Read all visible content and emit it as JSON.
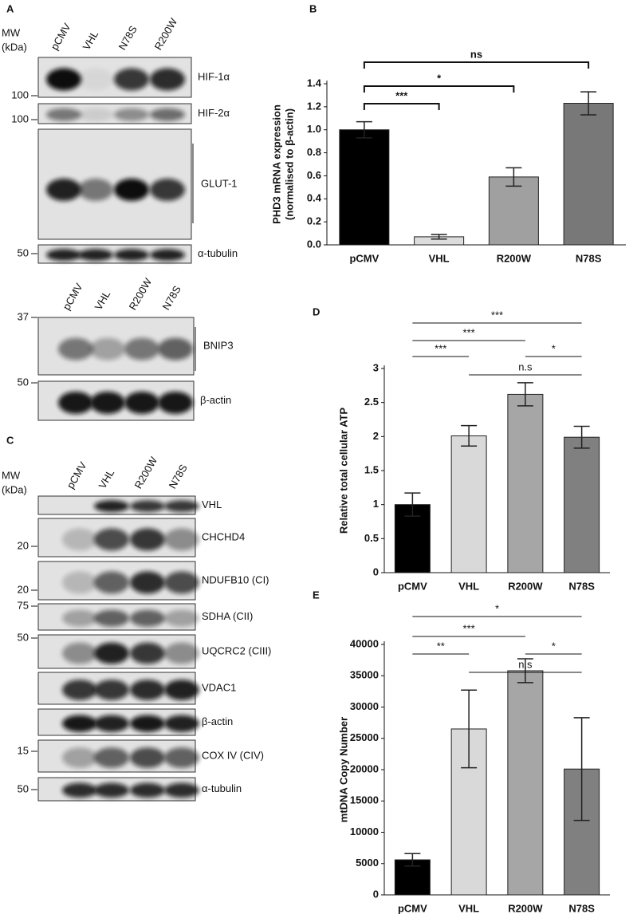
{
  "blots": [
    {
      "panel": "A",
      "mw_label": [
        "MW",
        "(kDa)"
      ],
      "lanes": [
        "pCMV",
        "VHL",
        "N78S",
        "R200W"
      ],
      "rows": [
        {
          "label": "HIF-1α",
          "markers": [
            "100"
          ]
        },
        {
          "label": "HIF-2α",
          "markers": [
            "100"
          ]
        },
        {
          "label": "GLUT-1",
          "markers": []
        },
        {
          "label": "α-tubulin",
          "markers": [
            "50"
          ]
        }
      ]
    },
    {
      "lanes": [
        "pCMV",
        "VHL",
        "R200W",
        "N78S"
      ],
      "rows": [
        {
          "label": "BNIP3",
          "markers": [
            "37"
          ]
        },
        {
          "label": "β-actin",
          "markers": [
            "50"
          ]
        }
      ]
    },
    {
      "panel": "C",
      "mw_label": [
        "MW",
        "(kDa)"
      ],
      "lanes": [
        "pCMV",
        "VHL",
        "R200W",
        "N78S"
      ],
      "rows": [
        {
          "label": "VHL",
          "markers": []
        },
        {
          "label": "CHCHD4",
          "markers": [
            "20"
          ]
        },
        {
          "label": "NDUFB10 (CI)",
          "markers": [
            "20"
          ]
        },
        {
          "label": "SDHA (CII)",
          "markers": [
            "75"
          ]
        },
        {
          "label": "UQCRC2  (CIII)",
          "markers": [
            "50"
          ]
        },
        {
          "label": "VDAC1",
          "markers": []
        },
        {
          "label": "β-actin",
          "markers": []
        },
        {
          "label": "COX IV (CIV)",
          "markers": [
            "15"
          ]
        },
        {
          "label": "α-tubulin",
          "markers": [
            "50"
          ]
        }
      ]
    }
  ],
  "chart_data": [
    {
      "type": "bar",
      "panel": "B",
      "y_label": [
        "PHD3 mRNA expression",
        "(normalised to β-actin)"
      ],
      "categories": [
        "pCMV",
        "VHL",
        "R200W",
        "N78S"
      ],
      "values": [
        1.0,
        0.07,
        0.59,
        1.23
      ],
      "errors": [
        0.07,
        0.02,
        0.08,
        0.1
      ],
      "colors": [
        "#000000",
        "#dcdcdc",
        "#a0a0a0",
        "#787878"
      ],
      "ylim": [
        0,
        1.4
      ],
      "yticks": [
        {
          "value": 0,
          "label": "0.0"
        },
        0.2,
        0.4,
        0.6,
        0.8,
        {
          "value": 1,
          "label": "1.0"
        },
        1.2,
        1.4
      ],
      "significance": [
        {
          "between": [
            "pCMV",
            "N78S"
          ],
          "label": "ns"
        },
        {
          "between": [
            "pCMV",
            "R200W"
          ],
          "label": "*"
        },
        {
          "between": [
            "pCMV",
            "VHL"
          ],
          "label": "***"
        }
      ]
    },
    {
      "type": "bar",
      "panel": "D",
      "y_label": [
        "Relative total cellular ATP"
      ],
      "categories": [
        "pCMV",
        "VHL",
        "R200W",
        "N78S"
      ],
      "values": [
        1.0,
        2.01,
        2.62,
        1.99
      ],
      "errors": [
        0.17,
        0.15,
        0.17,
        0.16
      ],
      "colors": [
        "#000000",
        "#d9d9d9",
        "#a6a6a6",
        "#808080"
      ],
      "ylim": [
        0,
        3
      ],
      "yticks": [
        0,
        0.5,
        1,
        1.5,
        2,
        2.5,
        3
      ],
      "significance": [
        {
          "between": [
            "pCMV",
            "N78S"
          ],
          "label": "***"
        },
        {
          "between": [
            "pCMV",
            "R200W"
          ],
          "label": "***"
        },
        {
          "between": [
            "pCMV",
            "VHL"
          ],
          "label": "***"
        },
        {
          "between": [
            "R200W",
            "N78S"
          ],
          "label": "*"
        },
        {
          "between": [
            "VHL",
            "N78S"
          ],
          "label": "n.s"
        }
      ]
    },
    {
      "type": "bar",
      "panel": "E",
      "y_label": [
        "mtDNA Copy Number"
      ],
      "categories": [
        "pCMV",
        "VHL",
        "R200W",
        "N78S"
      ],
      "values": [
        5600,
        26500,
        35800,
        20100
      ],
      "errors": [
        1000,
        6200,
        1900,
        8200
      ],
      "colors": [
        "#000000",
        "#d9d9d9",
        "#a6a6a6",
        "#808080"
      ],
      "ylim": [
        0,
        40000
      ],
      "yticks": [
        0,
        5000,
        10000,
        15000,
        20000,
        25000,
        30000,
        35000,
        40000
      ],
      "significance": [
        {
          "between": [
            "pCMV",
            "N78S"
          ],
          "label": "*"
        },
        {
          "between": [
            "pCMV",
            "R200W"
          ],
          "label": "***"
        },
        {
          "between": [
            "pCMV",
            "VHL"
          ],
          "label": "**"
        },
        {
          "between": [
            "R200W",
            "N78S"
          ],
          "label": "*"
        },
        {
          "between": [
            "VHL",
            "N78S"
          ],
          "label": "n.s"
        }
      ]
    }
  ]
}
